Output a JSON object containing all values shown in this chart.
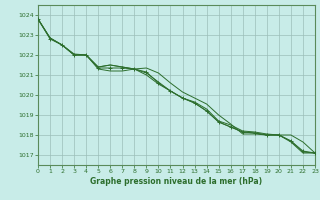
{
  "title": "Graphe pression niveau de la mer (hPa)",
  "background_color": "#c8ece8",
  "plot_bg_color": "#c8ece8",
  "grid_color": "#9cbfba",
  "line_color": "#2d6e2d",
  "border_color": "#5a8a5a",
  "xlim": [
    0,
    23
  ],
  "ylim": [
    1016.5,
    1024.5
  ],
  "yticks": [
    1017,
    1018,
    1019,
    1020,
    1021,
    1022,
    1023,
    1024
  ],
  "xticks": [
    0,
    1,
    2,
    3,
    4,
    5,
    6,
    7,
    8,
    9,
    10,
    11,
    12,
    13,
    14,
    15,
    16,
    17,
    18,
    19,
    20,
    21,
    22,
    23
  ],
  "series": [
    [
      1023.8,
      1022.85,
      1022.5,
      1022.0,
      1022.0,
      1021.3,
      1021.2,
      1021.2,
      1021.3,
      1021.35,
      1021.1,
      1020.6,
      1020.15,
      1019.85,
      1019.55,
      1019.0,
      1018.55,
      1018.05,
      1018.05,
      1018.0,
      1018.0,
      1018.0,
      1017.65,
      1017.1
    ],
    [
      1023.8,
      1022.85,
      1022.5,
      1022.05,
      1022.0,
      1021.4,
      1021.5,
      1021.4,
      1021.3,
      1021.0,
      1020.55,
      1020.2,
      1019.85,
      1019.6,
      1019.2,
      1018.65,
      1018.4,
      1018.15,
      1018.1,
      1018.0,
      1018.0,
      1017.65,
      1017.1,
      1017.1
    ],
    [
      1023.8,
      1022.85,
      1022.5,
      1022.0,
      1022.0,
      1021.4,
      1021.5,
      1021.4,
      1021.3,
      1021.1,
      1020.65,
      1020.2,
      1019.85,
      1019.65,
      1019.3,
      1018.7,
      1018.5,
      1018.2,
      1018.15,
      1018.05,
      1018.0,
      1017.7,
      1017.15,
      1017.1
    ]
  ],
  "marker_series_x": [
    0,
    1,
    2,
    3,
    4,
    5,
    6,
    7,
    8,
    9,
    10,
    11,
    12,
    13,
    14,
    15,
    16,
    17,
    18,
    19,
    20,
    21,
    22,
    23
  ],
  "marker_series_y": [
    1023.8,
    1022.8,
    1022.5,
    1022.0,
    1022.0,
    1021.35,
    1021.35,
    1021.35,
    1021.3,
    1021.15,
    1020.6,
    1020.2,
    1019.85,
    1019.6,
    1019.2,
    1018.65,
    1018.4,
    1018.15,
    1018.1,
    1018.0,
    1018.0,
    1017.7,
    1017.2,
    1017.1
  ],
  "fig_width": 3.2,
  "fig_height": 2.0,
  "dpi": 100
}
